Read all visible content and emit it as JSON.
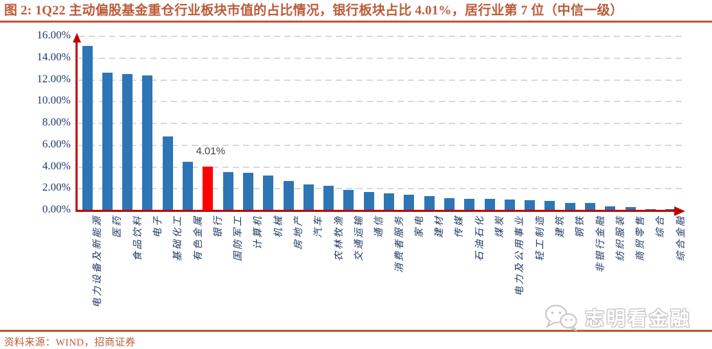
{
  "header": {
    "title": "图 2: 1Q22 主动偏股基金重仓行业板块市值的占比情况，银行板块占比 4.01%，居行业第 7 位（中信一级）"
  },
  "footer": {
    "source": "资料来源：WIND，招商证券",
    "watermark_text": "志明看金融",
    "watermark_icon": "wechat-icon"
  },
  "colors": {
    "accent_brick": "#BC5B38",
    "bar_blue": "#2E75B6",
    "bar_highlight_red": "#FF0000",
    "axis_red": "#C00000",
    "gridline_gray": "#D9D9D9",
    "tick_navy": "#1F3864",
    "value_label_gray": "#3F3F3F"
  },
  "chart_data": {
    "type": "bar",
    "title": "图 2: 1Q22 主动偏股基金重仓行业板块市值的占比情况，银行板块占比 4.01%，居行业第 7 位（中信一级）",
    "unit": "%",
    "grid": true,
    "legend": "none",
    "ylim": [
      0,
      16
    ],
    "ytick_step": 2,
    "ytick_labels": [
      "0.00%",
      "2.00%",
      "4.00%",
      "6.00%",
      "8.00%",
      "10.00%",
      "12.00%",
      "14.00%",
      "16.00%"
    ],
    "categories": [
      "电力设备及新能源",
      "医药",
      "食品饮料",
      "电子",
      "基础化工",
      "有色金属",
      "银行",
      "国防军工",
      "计算机",
      "机械",
      "房地产",
      "汽车",
      "农林牧渔",
      "交通运输",
      "通信",
      "消费者服务",
      "家电",
      "建材",
      "传媒",
      "石油石化",
      "煤炭",
      "电力及公用事业",
      "轻工制造",
      "建筑",
      "钢铁",
      "非银行金融",
      "纺织服装",
      "商贸零售",
      "综合",
      "综合金融"
    ],
    "values": [
      15.1,
      12.65,
      12.55,
      12.4,
      6.8,
      4.5,
      4.01,
      3.5,
      3.45,
      3.2,
      2.7,
      2.4,
      2.3,
      1.9,
      1.7,
      1.55,
      1.45,
      1.3,
      1.15,
      1.1,
      1.05,
      1.0,
      0.95,
      0.9,
      0.72,
      0.7,
      0.4,
      0.3,
      0.15,
      0.1
    ],
    "bar_color": "#2E75B6",
    "highlight": {
      "index": 6,
      "category": "银行",
      "label": "4.01%",
      "color": "#FF0000"
    }
  }
}
